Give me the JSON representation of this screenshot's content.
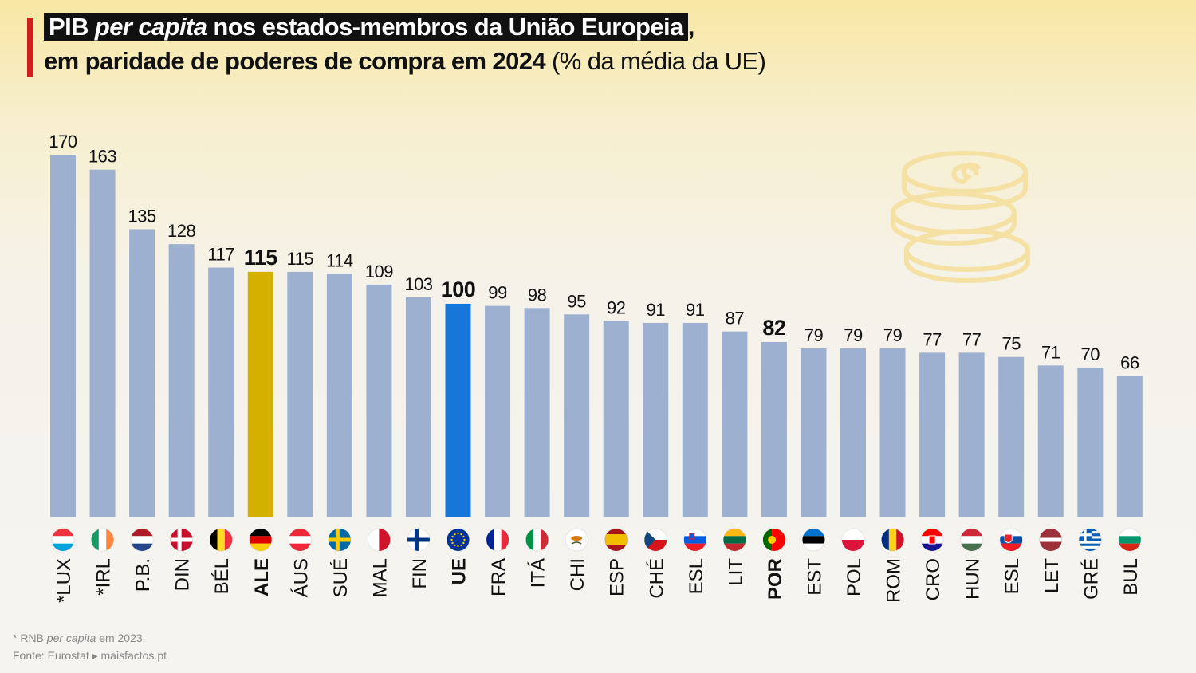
{
  "title": {
    "part1": "PIB ",
    "part2": "per capita",
    "part3": " nos estados-membros da União Europeia",
    "part4": ",",
    "line2_bold": "em paridade de poderes de compra em 2024",
    "line2_normal": " (% da média da UE)"
  },
  "footnote": {
    "line1_prefix": "* RNB ",
    "line1_italic": "per capita",
    "line1_suffix": " em 2023.",
    "line2": "Fonte: Eurostat ▸ maisfactos.pt"
  },
  "colors": {
    "bar_default": "#9eb0cf",
    "bar_germany": "#d4b000",
    "bar_eu": "#1677d9",
    "accent": "#d21d1d",
    "coin": "#f4e1a3"
  },
  "decoration": {
    "coins_icon": "coin-stack-icon"
  },
  "chart_data": {
    "type": "bar",
    "ylim": [
      0,
      170
    ],
    "grid": false,
    "legend": "none",
    "categories": [
      "*LUX",
      "*IRL",
      "P.B.",
      "DIN",
      "BÉL",
      "ALE",
      "ÁUS",
      "SUÉ",
      "MAL",
      "FIN",
      "UE",
      "FRA",
      "ITÁ",
      "CHI",
      "ESP",
      "CHÉ",
      "ESL",
      "LIT",
      "POR",
      "EST",
      "POL",
      "ROM",
      "CRO",
      "HUN",
      "ESL",
      "LET",
      "GRÉ",
      "BUL"
    ],
    "values": [
      170,
      163,
      135,
      128,
      117,
      115,
      115,
      114,
      109,
      103,
      100,
      99,
      98,
      95,
      92,
      91,
      91,
      87,
      82,
      79,
      79,
      79,
      77,
      77,
      75,
      71,
      70,
      66
    ],
    "highlight": {
      "ALE": "bar_germany",
      "UE": "bar_eu"
    },
    "bold_labels": [
      "ALE",
      "UE",
      "POR"
    ],
    "flags": [
      "luxembourg",
      "ireland",
      "netherlands",
      "denmark",
      "belgium",
      "germany",
      "austria",
      "sweden",
      "malta",
      "finland",
      "european-union",
      "france",
      "italy",
      "cyprus",
      "spain",
      "czechia",
      "slovenia",
      "lithuania",
      "portugal",
      "estonia",
      "poland",
      "romania",
      "croatia",
      "hungary",
      "slovakia",
      "latvia",
      "greece",
      "bulgaria"
    ]
  }
}
